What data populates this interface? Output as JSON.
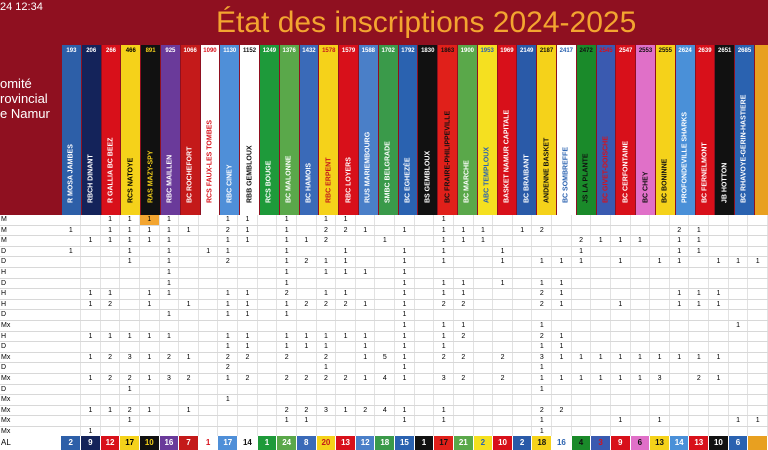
{
  "header": {
    "date": "24 12:34",
    "title": "État des inscriptions 2024-2025"
  },
  "comite": [
    "omité",
    "rovincial",
    "e Namur"
  ],
  "clubs": [
    {
      "code": "193",
      "name": "R MOSA JAMBES",
      "bg": "#2d5fa8",
      "fg": "#ffffff",
      "total": "2"
    },
    {
      "code": "206",
      "name": "RBCH DINANT",
      "bg": "#14235a",
      "fg": "#ffffff",
      "total": "9"
    },
    {
      "code": "266",
      "name": "R GALLIA BC BEEZ",
      "bg": "#d8101a",
      "fg": "#ffffff",
      "total": "12"
    },
    {
      "code": "466",
      "name": "RCS NATOYE",
      "bg": "#f5d21a",
      "fg": "#000000",
      "total": "17"
    },
    {
      "code": "891",
      "name": "RAS MAZY-SPY",
      "bg": "#111111",
      "fg": "#f5d21a",
      "total": "10"
    },
    {
      "code": "925",
      "name": "RBC MAILLEN",
      "bg": "#6a3a9a",
      "fg": "#ffffff",
      "total": "16"
    },
    {
      "code": "1066",
      "name": "BC ROCHEFORT",
      "bg": "#c41a1a",
      "fg": "#ffffff",
      "total": "7"
    },
    {
      "code": "1090",
      "name": "RCS FAUX-LES TOMBES",
      "bg": "#ffffff",
      "fg": "#d8101a",
      "total": "1"
    },
    {
      "code": "1130",
      "name": "RBC CINEY",
      "bg": "#4f8fd8",
      "fg": "#ffffff",
      "total": "17"
    },
    {
      "code": "1152",
      "name": "RBB GEMBLOUX",
      "bg": "#ffffff",
      "fg": "#111111",
      "total": "14"
    },
    {
      "code": "1249",
      "name": "RCS BOUGE",
      "bg": "#1e9a3a",
      "fg": "#ffffff",
      "total": "1"
    },
    {
      "code": "1376",
      "name": "BC MALONNE",
      "bg": "#5aa84a",
      "fg": "#ffffff",
      "total": "24"
    },
    {
      "code": "1432",
      "name": "BC HAMOIS",
      "bg": "#3a6ab8",
      "fg": "#ffffff",
      "total": "8"
    },
    {
      "code": "1578",
      "name": "RBC ERPENT",
      "bg": "#f5d21a",
      "fg": "#c41a1a",
      "total": "20"
    },
    {
      "code": "1579",
      "name": "RBC LOYERS",
      "bg": "#d8101a",
      "fg": "#ffffff",
      "total": "13"
    },
    {
      "code": "1588",
      "name": "RUS MARIEMBOURG",
      "bg": "#4a7fc8",
      "fg": "#ffffff",
      "total": "12"
    },
    {
      "code": "1702",
      "name": "SMBC BELGRADE",
      "bg": "#3a9a4a",
      "fg": "#ffffff",
      "total": "18"
    },
    {
      "code": "1792",
      "name": "BC EGHEZÉE",
      "bg": "#2a62b0",
      "fg": "#ffffff",
      "total": "15"
    },
    {
      "code": "1830",
      "name": "BS GEMBLOUX",
      "bg": "#111111",
      "fg": "#ffffff",
      "total": "1"
    },
    {
      "code": "1863",
      "name": "BC FRAIRE-PHILIPPEVILLE",
      "bg": "#e0201a",
      "fg": "#111111",
      "total": "17"
    },
    {
      "code": "1900",
      "name": "BC MARCHE",
      "bg": "#5aa84a",
      "fg": "#ffffff",
      "total": "21"
    },
    {
      "code": "1953",
      "name": "ABC TEMPLOUX",
      "bg": "#f5e020",
      "fg": "#2a62b0",
      "total": "2"
    },
    {
      "code": "1969",
      "name": "BASKET NAMUR CAPITALE",
      "bg": "#d8101a",
      "fg": "#ffffff",
      "total": "10"
    },
    {
      "code": "2149",
      "name": "BC BRAIBANT",
      "bg": "#2a5aa8",
      "fg": "#ffffff",
      "total": "2"
    },
    {
      "code": "2187",
      "name": "ANDENNE BASKET",
      "bg": "#f5d21a",
      "fg": "#111111",
      "total": "18"
    },
    {
      "code": "2417",
      "name": "BC SOMBREFFE",
      "bg": "#ffffff",
      "fg": "#2a62b0",
      "total": "16"
    },
    {
      "code": "2472",
      "name": "JS LA PLANTE",
      "bg": "#1a8a2a",
      "fg": "#111111",
      "total": "4"
    },
    {
      "code": "2545",
      "name": "BC GIVET-DOISCHE",
      "bg": "#3a5ab0",
      "fg": "#d8101a",
      "total": "3"
    },
    {
      "code": "2547",
      "name": "BC CERFONTAINE",
      "bg": "#d8101a",
      "fg": "#ffffff",
      "total": "9"
    },
    {
      "code": "2553",
      "name": "BC CHEY",
      "bg": "#e070c8",
      "fg": "#111111",
      "total": "6"
    },
    {
      "code": "2555",
      "name": "BC BONINNE",
      "bg": "#f5d21a",
      "fg": "#111111",
      "total": "13"
    },
    {
      "code": "2624",
      "name": "PROFONDEVILLE SHARKS",
      "bg": "#4a90d8",
      "fg": "#ffffff",
      "total": "14"
    },
    {
      "code": "2639",
      "name": "BC FERNELMONT",
      "bg": "#d8101a",
      "fg": "#ffffff",
      "total": "13"
    },
    {
      "code": "2651",
      "name": "JB HOTTON",
      "bg": "#111111",
      "fg": "#ffffff",
      "total": "10"
    },
    {
      "code": "2685",
      "name": "BC RHAVOYE-GERIN-HASTIERE",
      "bg": "#2a62b0",
      "fg": "#ffffff",
      "total": "6"
    },
    {
      "code": "",
      "name": "",
      "bg": "#e8a020",
      "fg": "#111111",
      "total": ""
    }
  ],
  "rows": [
    {
      "label": "M",
      "cells": [
        "",
        "",
        "1",
        "1",
        "1",
        "1",
        "",
        "",
        "1",
        "1",
        "",
        "1",
        "",
        "1",
        "1",
        "",
        "",
        "",
        "",
        "1",
        "",
        "",
        "",
        "",
        "",
        "",
        "",
        "",
        "",
        "",
        "",
        "",
        "",
        "",
        "",
        ""
      ]
    },
    {
      "label": "M",
      "cells": [
        "1",
        "",
        "1",
        "1",
        "1",
        "1",
        "1",
        "",
        "2",
        "1",
        "",
        "1",
        "",
        "2",
        "2",
        "1",
        "",
        "1",
        "",
        "1",
        "1",
        "1",
        "",
        "1",
        "2",
        "",
        "",
        "",
        "",
        "",
        "",
        "2",
        "1",
        "",
        "",
        ""
      ]
    },
    {
      "label": "M",
      "cells": [
        "",
        "1",
        "1",
        "1",
        "1",
        "1",
        "",
        "",
        "1",
        "1",
        "",
        "1",
        "1",
        "2",
        "",
        "",
        "1",
        "",
        "",
        "1",
        "1",
        "1",
        "",
        "",
        "",
        "",
        "2",
        "1",
        "1",
        "1",
        "",
        "1",
        "1",
        "",
        "",
        ""
      ]
    },
    {
      "label": "D",
      "cells": [
        "1",
        "",
        "",
        "1",
        "",
        "1",
        "",
        "1",
        "1",
        "",
        "",
        "1",
        "",
        "",
        "1",
        "",
        "",
        "1",
        "",
        "1",
        "",
        "",
        "1",
        "",
        "",
        "",
        "1",
        "",
        "",
        "",
        "",
        "1",
        "1",
        "",
        "",
        ""
      ]
    },
    {
      "label": "D",
      "cells": [
        "",
        "",
        "",
        "1",
        "",
        "1",
        "",
        "",
        "2",
        "",
        "",
        "1",
        "2",
        "1",
        "1",
        "",
        "",
        "1",
        "",
        "1",
        "",
        "",
        "1",
        "",
        "1",
        "1",
        "1",
        "",
        "1",
        "",
        "1",
        "1",
        "",
        "1",
        "1",
        "1"
      ]
    },
    {
      "label": "H",
      "cells": [
        "",
        "",
        "",
        "",
        "",
        "1",
        "",
        "",
        "",
        "",
        "",
        "1",
        "",
        "1",
        "1",
        "1",
        "",
        "1",
        "",
        "",
        "",
        "",
        "",
        "",
        "",
        "",
        "",
        "",
        "",
        "",
        "",
        "",
        "",
        "",
        "",
        ""
      ]
    },
    {
      "label": "D",
      "cells": [
        "",
        "",
        "",
        "",
        "",
        "1",
        "",
        "",
        "",
        "",
        "",
        "1",
        "",
        "",
        "",
        "",
        "",
        "1",
        "",
        "1",
        "1",
        "",
        "1",
        "",
        "1",
        "1",
        "",
        "",
        "",
        "",
        "",
        "",
        "",
        "",
        "",
        ""
      ]
    },
    {
      "label": "H",
      "cells": [
        "",
        "1",
        "1",
        "",
        "1",
        "1",
        "",
        "",
        "1",
        "1",
        "",
        "2",
        "",
        "1",
        "1",
        "",
        "",
        "1",
        "",
        "1",
        "1",
        "",
        "",
        "",
        "2",
        "1",
        "",
        "",
        "",
        "",
        "",
        "1",
        "1",
        "1",
        "",
        ""
      ]
    },
    {
      "label": "H",
      "cells": [
        "",
        "1",
        "2",
        "",
        "1",
        "",
        "1",
        "",
        "1",
        "1",
        "",
        "1",
        "2",
        "2",
        "2",
        "1",
        "",
        "1",
        "",
        "2",
        "2",
        "",
        "",
        "",
        "2",
        "1",
        "",
        "",
        "1",
        "",
        "",
        "1",
        "1",
        "1",
        "",
        ""
      ]
    },
    {
      "label": "D",
      "cells": [
        "",
        "",
        "",
        "",
        "",
        "1",
        "",
        "",
        "1",
        "1",
        "",
        "1",
        "",
        "",
        "",
        "",
        "",
        "1",
        "",
        "",
        "",
        "",
        "",
        "",
        "",
        "",
        "",
        "",
        "",
        "",
        "",
        "",
        "",
        "",
        "",
        ""
      ]
    },
    {
      "label": "Mx",
      "cells": [
        "",
        "",
        "",
        "",
        "",
        "",
        "",
        "",
        "",
        "",
        "",
        "",
        "",
        "",
        "",
        "",
        "",
        "1",
        "",
        "1",
        "1",
        "",
        "",
        "",
        "1",
        "",
        "",
        "",
        "",
        "",
        "",
        "",
        "",
        "",
        "1",
        ""
      ]
    },
    {
      "label": "H",
      "cells": [
        "",
        "1",
        "1",
        "1",
        "1",
        "1",
        "",
        "",
        "1",
        "1",
        "",
        "1",
        "1",
        "1",
        "1",
        "1",
        "",
        "1",
        "",
        "1",
        "2",
        "",
        "",
        "",
        "2",
        "1",
        "",
        "",
        "",
        "",
        "",
        "",
        "",
        "",
        "",
        ""
      ]
    },
    {
      "label": "D",
      "cells": [
        "",
        "",
        "",
        "",
        "",
        "",
        "",
        "",
        "1",
        "1",
        "",
        "1",
        "1",
        "1",
        "",
        "1",
        "",
        "1",
        "",
        "1",
        "",
        "",
        "",
        "",
        "1",
        "1",
        "",
        "",
        "",
        "",
        "",
        "",
        "",
        "",
        "",
        ""
      ]
    },
    {
      "label": "Mx",
      "cells": [
        "",
        "1",
        "2",
        "3",
        "1",
        "2",
        "1",
        "",
        "2",
        "2",
        "",
        "2",
        "",
        "2",
        "",
        "1",
        "5",
        "1",
        "",
        "2",
        "2",
        "",
        "2",
        "",
        "3",
        "1",
        "1",
        "1",
        "1",
        "1",
        "1",
        "1",
        "1",
        "1",
        "",
        ""
      ]
    },
    {
      "label": "D",
      "cells": [
        "",
        "",
        "",
        "",
        "",
        "",
        "",
        "",
        "2",
        "",
        "",
        "",
        "",
        "1",
        "",
        "",
        "",
        "1",
        "",
        "",
        "",
        "",
        "",
        "",
        "1",
        "",
        "",
        "",
        "",
        "",
        "",
        "",
        "",
        "",
        "",
        ""
      ]
    },
    {
      "label": "Mx",
      "cells": [
        "",
        "1",
        "2",
        "2",
        "1",
        "3",
        "2",
        "",
        "1",
        "2",
        "",
        "2",
        "2",
        "2",
        "2",
        "1",
        "4",
        "1",
        "",
        "3",
        "2",
        "",
        "2",
        "",
        "1",
        "1",
        "1",
        "1",
        "1",
        "1",
        "3",
        "",
        "2",
        "1",
        "",
        ""
      ]
    },
    {
      "label": "D",
      "cells": [
        "",
        "",
        "",
        "1",
        "",
        "",
        "",
        "",
        "",
        "",
        "",
        "",
        "",
        "",
        "",
        "",
        "",
        "",
        "",
        "",
        "",
        "",
        "",
        "",
        "1",
        "",
        "",
        "",
        "",
        "",
        "",
        "",
        "",
        "",
        "",
        ""
      ]
    },
    {
      "label": "Mx",
      "cells": [
        "",
        "",
        "",
        "",
        "",
        "",
        "",
        "",
        "1",
        "",
        "",
        "",
        "",
        "",
        "",
        "",
        "",
        "",
        "",
        "",
        "",
        "",
        "",
        "",
        "",
        "",
        "",
        "",
        "",
        "",
        "",
        "",
        "",
        "",
        "",
        ""
      ]
    },
    {
      "label": "Mx",
      "cells": [
        "",
        "1",
        "1",
        "2",
        "1",
        "",
        "1",
        "",
        "",
        "",
        "",
        "2",
        "2",
        "3",
        "1",
        "2",
        "4",
        "1",
        "",
        "1",
        "",
        "",
        "",
        "",
        "2",
        "2",
        "",
        "",
        "",
        "",
        "",
        "",
        "",
        "",
        "",
        ""
      ]
    },
    {
      "label": "Mx",
      "cells": [
        "",
        "",
        "",
        "1",
        "",
        "",
        "",
        "",
        "",
        "",
        "",
        "1",
        "1",
        "",
        "",
        "",
        "",
        "1",
        "",
        "1",
        "",
        "",
        "",
        "",
        "1",
        "",
        "",
        "",
        "1",
        "",
        "1",
        "",
        "",
        "",
        "1",
        "1"
      ]
    },
    {
      "label": "Mx",
      "cells": [
        "",
        "1",
        "",
        "",
        "",
        "",
        "",
        "",
        "",
        "",
        "",
        "",
        "",
        "",
        "",
        "",
        "",
        "",
        "",
        "",
        "",
        "",
        "",
        "",
        "1",
        "",
        "",
        "",
        "",
        "",
        "",
        "",
        "",
        "",
        "",
        ""
      ]
    }
  ],
  "total_label": "AL"
}
